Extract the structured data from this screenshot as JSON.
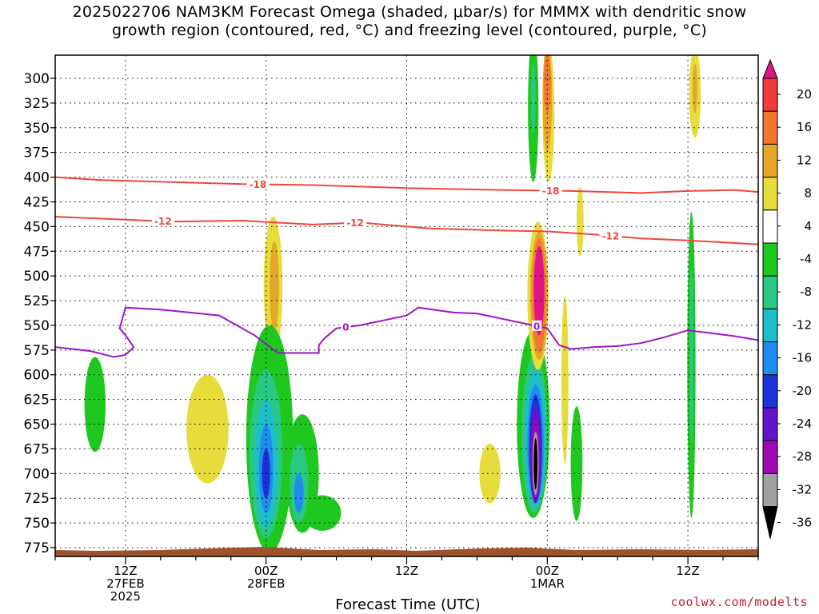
{
  "title": {
    "line1": "2025022706 NAM3KM Forecast Omega (shaded, μbar/s) for MMMX with dendritic snow",
    "line2": "growth region (contoured, red, °C) and freezing level (contoured, purple, °C)"
  },
  "credit": "coolwx.com/modelts",
  "chart_data": {
    "type": "heatmap",
    "title": "2025022706 NAM3KM Forecast Omega (shaded, μbar/s) for MMMX with dendritic snow growth region (contoured, red, °C) and freezing level (contoured, purple, °C)",
    "xlabel": "Forecast Time (UTC)",
    "ylabel": "",
    "x_unit": "hours since 2025-02-27 06Z",
    "xlim": [
      0,
      60
    ],
    "ylim_hPa": [
      275,
      785
    ],
    "y_ticks": [
      300,
      325,
      350,
      375,
      400,
      425,
      450,
      475,
      500,
      525,
      550,
      575,
      600,
      625,
      650,
      675,
      700,
      725,
      750,
      775
    ],
    "x_ticks": [
      {
        "x": 6,
        "lines": [
          "12Z",
          "27FEB",
          "2025"
        ]
      },
      {
        "x": 18,
        "lines": [
          "00Z",
          "28FEB"
        ]
      },
      {
        "x": 30,
        "lines": [
          "12Z"
        ]
      },
      {
        "x": 42,
        "lines": [
          "00Z",
          "1MAR"
        ]
      },
      {
        "x": 54,
        "lines": [
          "12Z"
        ]
      }
    ],
    "grid": true,
    "colorbar": {
      "ticks": [
        20,
        16,
        12,
        8,
        4,
        -4,
        -8,
        -12,
        -16,
        -20,
        -24,
        -28,
        -32,
        -36
      ],
      "colors": [
        "#e0148a",
        "#f03c3c",
        "#f07832",
        "#e6a628",
        "#e6dc3c",
        "#ffffff",
        "#1ec81e",
        "#28c882",
        "#1ebec8",
        "#1e8cf0",
        "#1e32dc",
        "#6414c8",
        "#a00ab4",
        "#a0a0a0",
        "#000000"
      ]
    },
    "dgz_contours": [
      {
        "label": "-18",
        "points": [
          [
            0,
            400
          ],
          [
            4,
            403
          ],
          [
            10,
            405
          ],
          [
            16,
            407
          ],
          [
            22,
            408
          ],
          [
            30,
            411
          ],
          [
            38,
            413
          ],
          [
            44,
            414
          ],
          [
            50,
            416
          ],
          [
            54,
            414
          ],
          [
            58,
            413
          ],
          [
            60,
            415
          ]
        ],
        "label_x": [
          17.3,
          42.3
        ]
      },
      {
        "label": "-12",
        "points": [
          [
            0,
            440
          ],
          [
            6,
            443
          ],
          [
            10,
            445
          ],
          [
            16,
            444
          ],
          [
            22,
            448
          ],
          [
            26,
            446
          ],
          [
            32,
            452
          ],
          [
            38,
            454
          ],
          [
            42,
            455
          ],
          [
            46,
            458
          ],
          [
            50,
            462
          ],
          [
            54,
            464
          ],
          [
            60,
            468
          ]
        ],
        "label_x": [
          9.2,
          25.6,
          47.4
        ]
      }
    ],
    "freezing_contours": [
      {
        "label": "0",
        "points": [
          [
            0,
            572
          ],
          [
            3,
            576
          ],
          [
            5,
            582
          ],
          [
            6,
            580
          ],
          [
            6.7,
            572
          ],
          [
            6,
            560
          ],
          [
            5.5,
            553
          ],
          [
            6,
            532
          ],
          [
            9,
            534
          ],
          [
            14,
            540
          ],
          [
            17,
            560
          ],
          [
            19,
            578
          ],
          [
            21,
            578
          ],
          [
            22.5,
            578
          ],
          [
            22.5,
            570
          ],
          [
            23,
            563
          ],
          [
            24,
            553
          ],
          [
            26,
            550
          ],
          [
            28,
            545
          ],
          [
            30,
            540
          ],
          [
            31,
            532
          ],
          [
            34,
            537
          ],
          [
            36,
            538
          ],
          [
            38,
            543
          ],
          [
            40,
            548
          ],
          [
            42,
            553
          ],
          [
            43,
            570
          ],
          [
            44,
            574
          ],
          [
            46,
            572
          ],
          [
            48,
            571
          ],
          [
            50,
            568
          ],
          [
            52,
            562
          ],
          [
            54,
            555
          ],
          [
            56,
            558
          ],
          [
            58,
            561
          ],
          [
            60,
            565
          ]
        ],
        "label_x": [
          24.8,
          41.1
        ]
      }
    ],
    "omega_blobs": [
      {
        "name": "green early-27",
        "value": -6,
        "x": 3.4,
        "p": 630,
        "rx": 0.9,
        "rp": 48
      },
      {
        "name": "yellow early-28",
        "value": 4,
        "x": 13,
        "p": 655,
        "rx": 1.8,
        "rp": 55
      },
      {
        "name": "yellow mid-level 28",
        "value": 4,
        "x": 18.6,
        "p": 510,
        "rx": 0.8,
        "rp": 70
      },
      {
        "name": "orange mid-level 28",
        "value": 8,
        "x": 18.7,
        "p": 510,
        "rx": 0.4,
        "rp": 45
      },
      {
        "name": "green 28 00Z",
        "value": -6,
        "x": 18.3,
        "p": 665,
        "rx": 2.0,
        "rp": 115
      },
      {
        "name": "green 28 03Z",
        "value": -6,
        "x": 21.1,
        "p": 700,
        "rx": 1.4,
        "rp": 60
      },
      {
        "name": "green spill",
        "value": -6,
        "x": 22.8,
        "p": 740,
        "rx": 1.6,
        "rp": 18
      },
      {
        "name": "teal 28 00Z",
        "value": -10,
        "x": 18.0,
        "p": 680,
        "rx": 1.4,
        "rp": 85
      },
      {
        "name": "teal 28 03Z",
        "value": -10,
        "x": 20.8,
        "p": 710,
        "rx": 0.8,
        "rp": 40
      },
      {
        "name": "cyan 28 00Z",
        "value": -14,
        "x": 18.0,
        "p": 690,
        "rx": 1.0,
        "rp": 65
      },
      {
        "name": "blue 28 00Z",
        "value": -18,
        "x": 18.0,
        "p": 695,
        "rx": 0.6,
        "rp": 45
      },
      {
        "name": "blue 28 03Z",
        "value": -18,
        "x": 20.8,
        "p": 720,
        "rx": 0.4,
        "rp": 20
      },
      {
        "name": "indigo 28 00Z",
        "value": -22,
        "x": 18.0,
        "p": 700,
        "rx": 0.35,
        "rp": 25
      },
      {
        "name": "yellow early-1MAR",
        "value": 4,
        "x": 37.1,
        "p": 700,
        "rx": 0.9,
        "rp": 30
      },
      {
        "name": "green 1MAR",
        "value": -6,
        "x": 40.8,
        "p": 650,
        "rx": 1.4,
        "rp": 95
      },
      {
        "name": "teal 1MAR",
        "value": -10,
        "x": 40.9,
        "p": 660,
        "rx": 1.1,
        "rp": 80
      },
      {
        "name": "cyan 1MAR",
        "value": -14,
        "x": 41.0,
        "p": 665,
        "rx": 0.9,
        "rp": 70
      },
      {
        "name": "blue 1MAR",
        "value": -18,
        "x": 41.0,
        "p": 670,
        "rx": 0.7,
        "rp": 60
      },
      {
        "name": "indigo 1MAR",
        "value": -22,
        "x": 41.0,
        "p": 675,
        "rx": 0.55,
        "rp": 55
      },
      {
        "name": "violet 1MAR",
        "value": -26,
        "x": 41.0,
        "p": 680,
        "rx": 0.45,
        "rp": 50
      },
      {
        "name": "magenta 1MAR",
        "value": -30,
        "x": 41.0,
        "p": 685,
        "rx": 0.35,
        "rp": 40
      },
      {
        "name": "gray 1MAR",
        "value": -34,
        "x": 41.0,
        "p": 690,
        "rx": 0.26,
        "rp": 32
      },
      {
        "name": "black 1MAR",
        "value": -38,
        "x": 41.0,
        "p": 690,
        "rx": 0.16,
        "rp": 26
      },
      {
        "name": "green upper 1MAR",
        "value": -6,
        "x": 40.8,
        "p": 330,
        "rx": 0.45,
        "rp": 75
      },
      {
        "name": "teal upper 1MAR",
        "value": -10,
        "x": 40.8,
        "p": 320,
        "rx": 0.2,
        "rp": 35
      },
      {
        "name": "yellow upper 1MAR",
        "value": 4,
        "x": 42.1,
        "p": 335,
        "rx": 0.5,
        "rp": 70
      },
      {
        "name": "orange upper 1MAR",
        "value": 8,
        "x": 42.0,
        "p": 320,
        "rx": 0.4,
        "rp": 55
      },
      {
        "name": "red upper 1MAR",
        "value": 14,
        "x": 42.0,
        "p": 305,
        "rx": 0.3,
        "rp": 30
      },
      {
        "name": "yellow mid 1MAR",
        "value": 4,
        "x": 41.2,
        "p": 520,
        "rx": 0.9,
        "rp": 75
      },
      {
        "name": "orange mid 1MAR",
        "value": 8,
        "x": 41.3,
        "p": 520,
        "rx": 0.75,
        "rp": 65
      },
      {
        "name": "red mid 1MAR",
        "value": 14,
        "x": 41.3,
        "p": 520,
        "rx": 0.6,
        "rp": 58
      },
      {
        "name": "pink mid 1MAR",
        "value": 20,
        "x": 41.3,
        "p": 515,
        "rx": 0.45,
        "rp": 45
      },
      {
        "name": "yellow 1MAR 02Z",
        "value": 4,
        "x": 43.5,
        "p": 605,
        "rx": 0.3,
        "rp": 85
      },
      {
        "name": "yellow 1MAR 03Z",
        "value": 4,
        "x": 44.8,
        "p": 445,
        "rx": 0.3,
        "rp": 35
      },
      {
        "name": "green 1MAR 03Z",
        "value": -6,
        "x": 44.5,
        "p": 690,
        "rx": 0.5,
        "rp": 58
      },
      {
        "name": "yellow upper 1MAR 12Z",
        "value": 4,
        "x": 54.6,
        "p": 315,
        "rx": 0.5,
        "rp": 45
      },
      {
        "name": "orange upper 1MAR 12Z",
        "value": 8,
        "x": 54.6,
        "p": 310,
        "rx": 0.2,
        "rp": 25
      },
      {
        "name": "green 1MAR 12Z",
        "value": -6,
        "x": 54.3,
        "p": 590,
        "rx": 0.35,
        "rp": 155
      },
      {
        "name": "teal 1MAR 12Z",
        "value": -10,
        "x": 54.3,
        "p": 580,
        "rx": 0.15,
        "rp": 90
      }
    ]
  }
}
